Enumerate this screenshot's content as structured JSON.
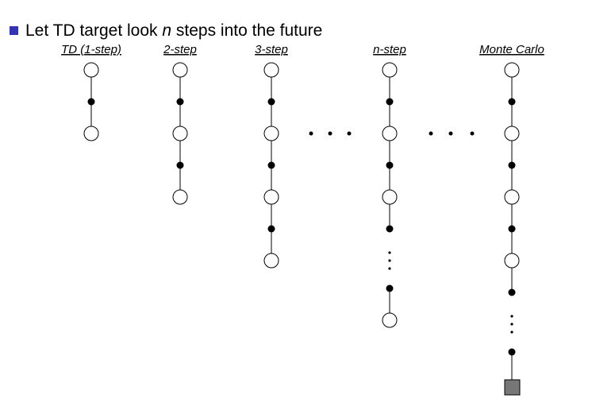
{
  "bullet": {
    "parts": [
      "Let TD target look ",
      "n",
      " steps into the future"
    ]
  },
  "columns": [
    {
      "label": "TD (1-step)"
    },
    {
      "label": "2-step"
    },
    {
      "label": "3-step"
    },
    {
      "label": "n-step"
    },
    {
      "label": "Monte Carlo"
    }
  ]
}
